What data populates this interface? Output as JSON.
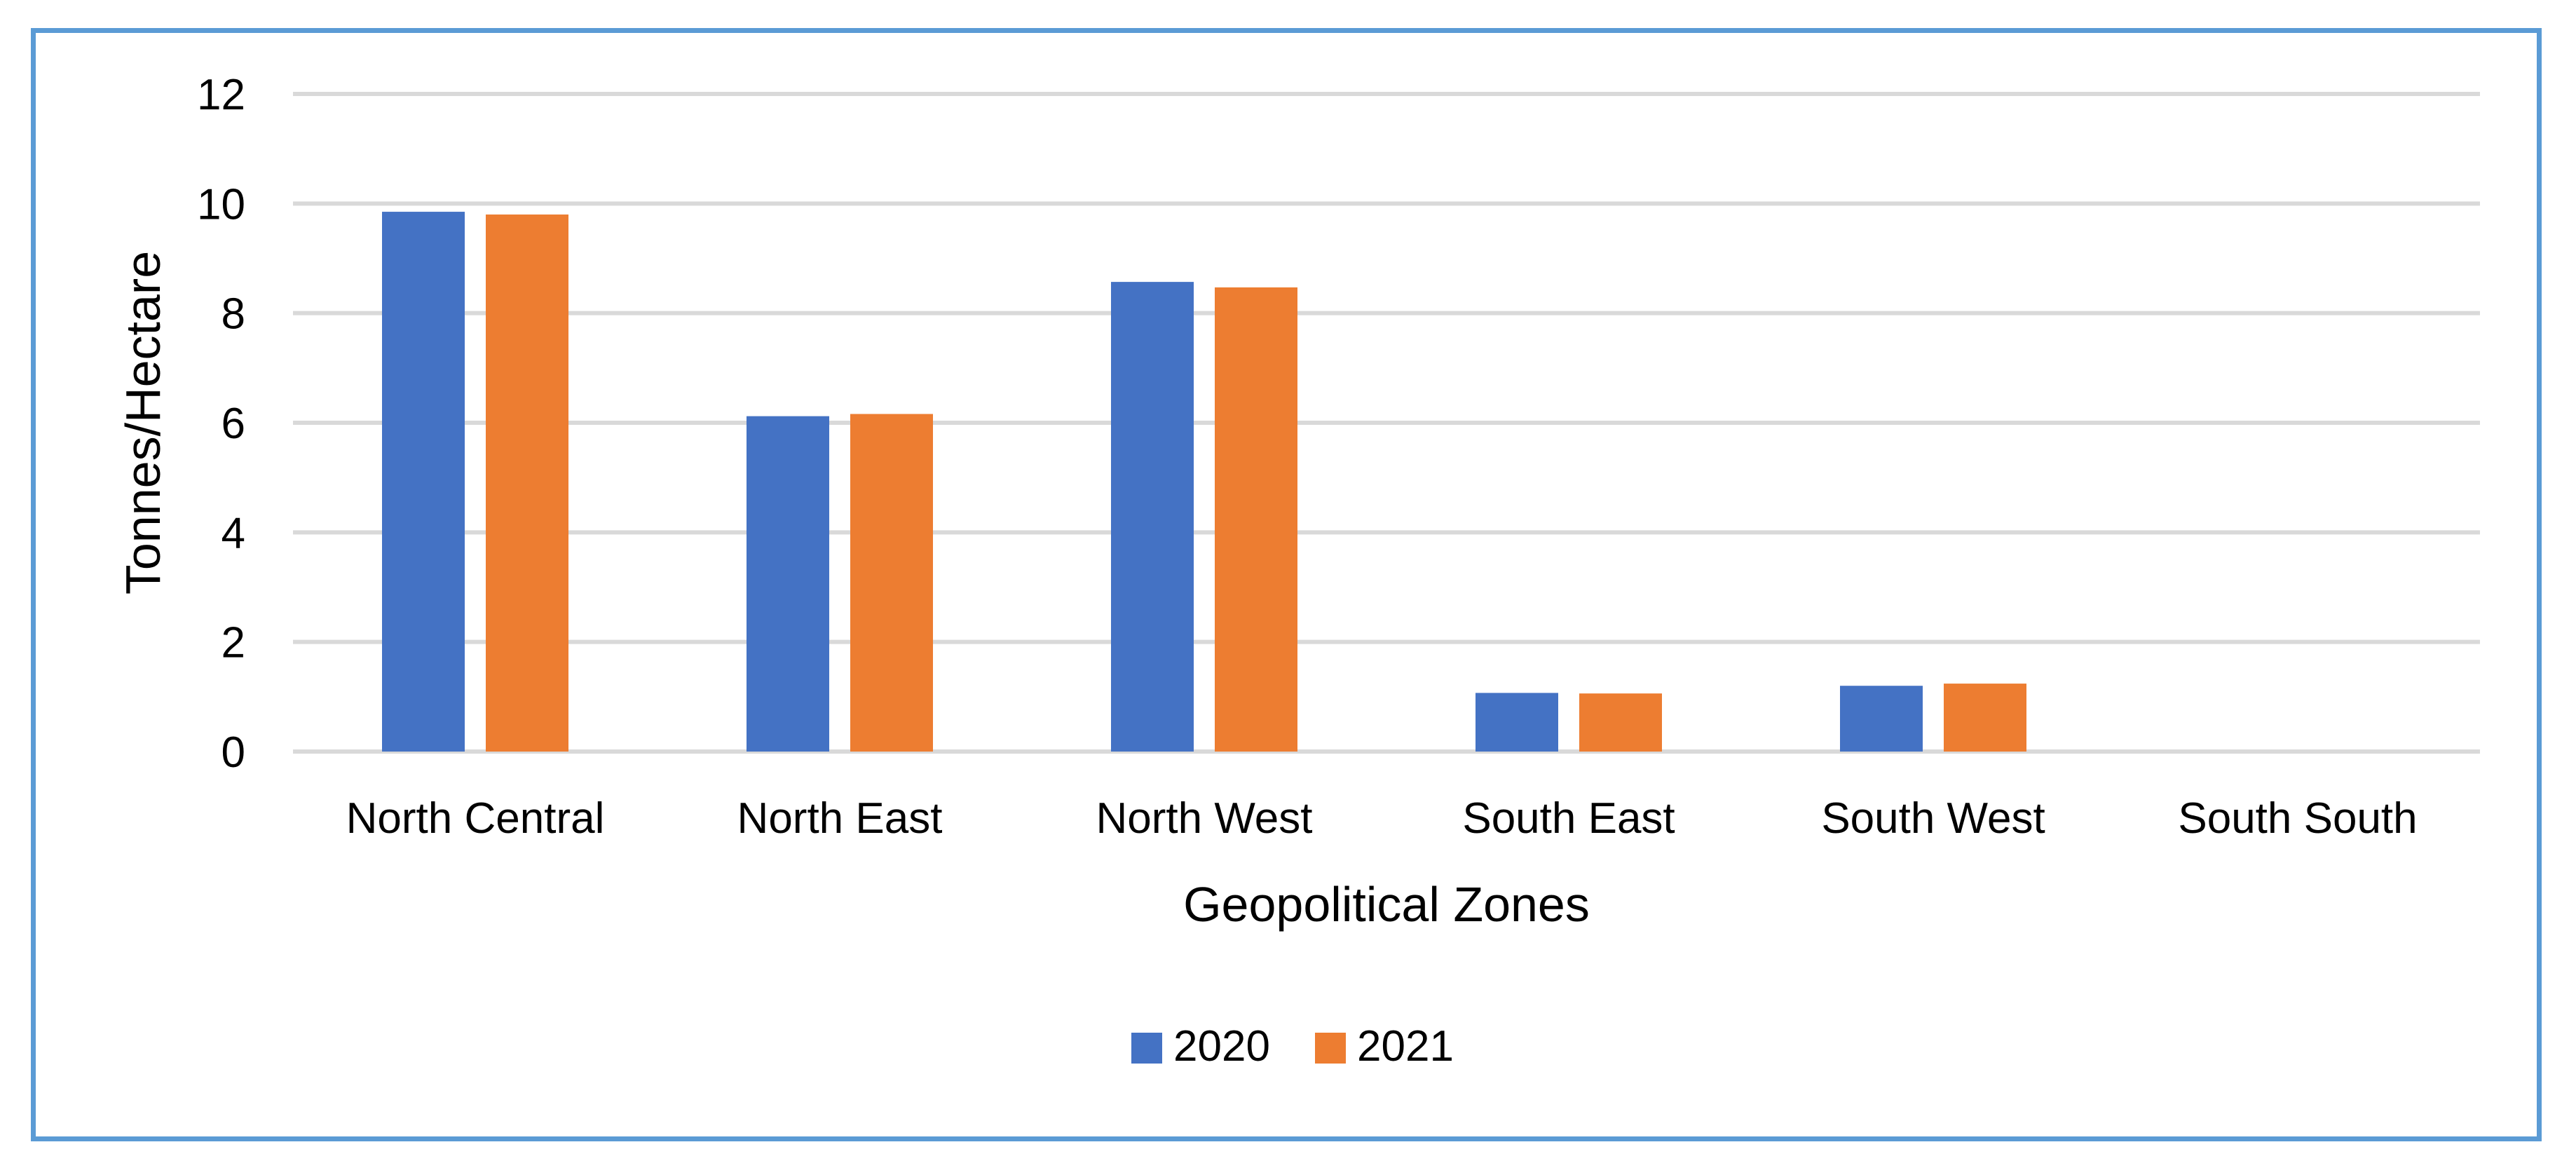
{
  "chart_data": {
    "type": "bar",
    "title": "",
    "xlabel": "Geopolitical Zones",
    "ylabel": "Tonnes/Hectare",
    "categories": [
      "North Central",
      "North East",
      "North West",
      "South East",
      "South West",
      "South South"
    ],
    "series": [
      {
        "name": "2020",
        "color": "#4472c4",
        "values": [
          9.85,
          6.12,
          8.57,
          1.07,
          1.2,
          0
        ]
      },
      {
        "name": "2021",
        "color": "#ed7d31",
        "values": [
          9.8,
          6.16,
          8.47,
          1.06,
          1.24,
          0
        ]
      }
    ],
    "ylim": [
      0,
      12
    ],
    "yticks": [
      0,
      2,
      4,
      6,
      8,
      10,
      12
    ],
    "grid": true,
    "legend_position": "bottom"
  }
}
